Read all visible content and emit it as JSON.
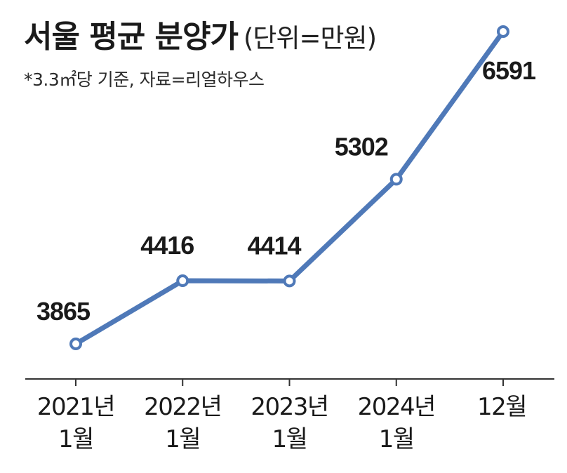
{
  "header": {
    "title": "서울 평균 분양가",
    "unit": "(단위=만원)",
    "note": "*3.3㎡당 기준, 자료=리얼하우스"
  },
  "colors": {
    "line": "#4f79b8",
    "marker_fill": "#ffffff",
    "axis": "#333333"
  },
  "chart_data": {
    "type": "line",
    "title": "서울 평균 분양가",
    "subtitle": "(단위=만원)",
    "xlabel": "",
    "ylabel": "",
    "categories": [
      [
        "2021년",
        "1월"
      ],
      [
        "2022년",
        "1월"
      ],
      [
        "2023년",
        "1월"
      ],
      [
        "2024년",
        "1월"
      ],
      [
        "12월"
      ]
    ],
    "series": [
      {
        "values": [
          3865,
          4416,
          4414,
          5302,
          6591
        ]
      }
    ],
    "data_labels": [
      "3865",
      "4416",
      "4414",
      "5302",
      "6591"
    ],
    "ylim": [
      3865,
      6591
    ],
    "grid": false,
    "legend": "none"
  }
}
